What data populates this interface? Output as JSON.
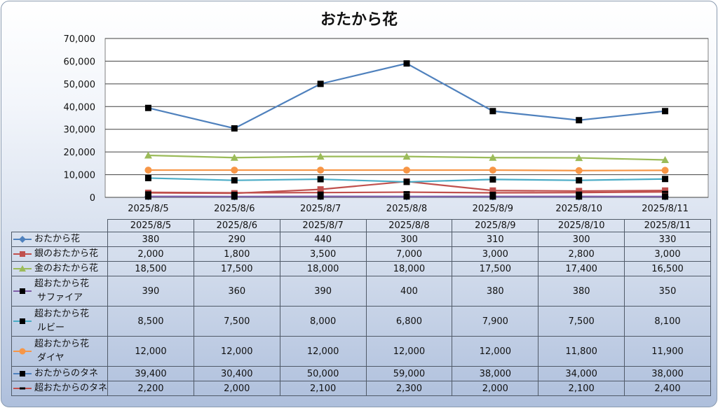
{
  "chart_data": {
    "type": "line",
    "title": "おたから花",
    "categories": [
      "2025/8/5",
      "2025/8/6",
      "2025/8/7",
      "2025/8/8",
      "2025/8/9",
      "2025/8/10",
      "2025/8/11"
    ],
    "y_ticks": [
      "0",
      "10,000",
      "20,000",
      "30,000",
      "40,000",
      "50,000",
      "60,000",
      "70,000"
    ],
    "ylim": [
      0,
      70000
    ],
    "grid": true,
    "legend": "data-table",
    "series": [
      {
        "name": "おたから花",
        "name_line2": "",
        "color": "#4f81bd",
        "marker": "diamond",
        "values": [
          380,
          290,
          440,
          300,
          310,
          300,
          330
        ],
        "labels": [
          "380",
          "290",
          "440",
          "300",
          "310",
          "300",
          "330"
        ]
      },
      {
        "name": "銀のおたから花",
        "name_line2": "",
        "color": "#c0504d",
        "marker": "square",
        "values": [
          2000,
          1800,
          3500,
          7000,
          3000,
          2800,
          3000
        ],
        "labels": [
          "2,000",
          "1,800",
          "3,500",
          "7,000",
          "3,000",
          "2,800",
          "3,000"
        ]
      },
      {
        "name": "金のおたから花",
        "name_line2": "",
        "color": "#9bbb59",
        "marker": "triangle",
        "values": [
          18500,
          17500,
          18000,
          18000,
          17500,
          17400,
          16500
        ],
        "labels": [
          "18,500",
          "17,500",
          "18,000",
          "18,000",
          "17,500",
          "17,400",
          "16,500"
        ]
      },
      {
        "name": "超おたから花",
        "name_line2": "サファイア",
        "color": "#7f5fa8",
        "marker": "square",
        "values": [
          390,
          360,
          390,
          400,
          380,
          380,
          350
        ],
        "labels": [
          "390",
          "360",
          "390",
          "400",
          "380",
          "380",
          "350"
        ]
      },
      {
        "name": "超おたから花",
        "name_line2": "ルビー",
        "color": "#4bacc6",
        "marker": "square",
        "values": [
          8500,
          7500,
          8000,
          6800,
          7900,
          7500,
          8100
        ],
        "labels": [
          "8,500",
          "7,500",
          "8,000",
          "6,800",
          "7,900",
          "7,500",
          "8,100"
        ]
      },
      {
        "name": "超おたから花",
        "name_line2": "ダイヤ",
        "color": "#f79646",
        "marker": "circle",
        "values": [
          12000,
          12000,
          12000,
          12000,
          12000,
          11800,
          11900
        ],
        "labels": [
          "12,000",
          "12,000",
          "12,000",
          "12,000",
          "12,000",
          "11,800",
          "11,900"
        ]
      },
      {
        "name": "おたからのタネ",
        "name_line2": "",
        "color": "#4f81bd",
        "marker": "square",
        "values": [
          39400,
          30400,
          50000,
          59000,
          38000,
          34000,
          38000
        ],
        "labels": [
          "39,400",
          "30,400",
          "50,000",
          "59,000",
          "38,000",
          "34,000",
          "38,000"
        ]
      },
      {
        "name": "超おたからのタネ",
        "name_line2": "",
        "color": "#c0504d",
        "marker": "dash",
        "values": [
          2200,
          2000,
          2100,
          2300,
          2000,
          2100,
          2400
        ],
        "labels": [
          "2,200",
          "2,000",
          "2,100",
          "2,300",
          "2,000",
          "2,100",
          "2,400"
        ]
      }
    ]
  }
}
